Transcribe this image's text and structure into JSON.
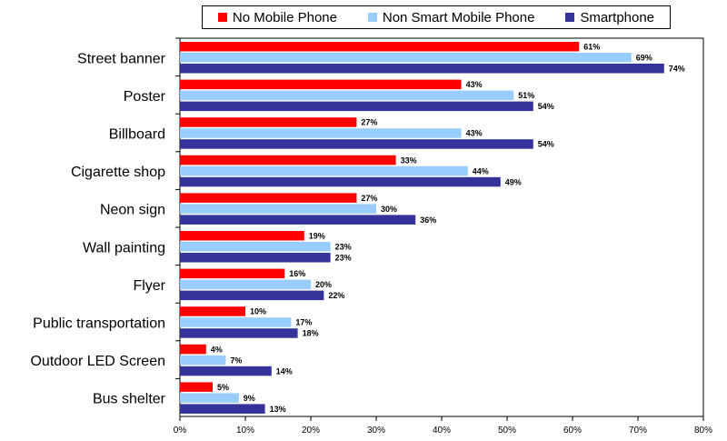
{
  "chart_data": {
    "type": "bar",
    "orientation": "horizontal",
    "categories": [
      "Street banner",
      "Poster",
      "Billboard",
      "Cigarette shop",
      "Neon sign",
      "Wall painting",
      "Flyer",
      "Public transportation",
      "Outdoor LED Screen",
      "Bus shelter"
    ],
    "series": [
      {
        "name": "No Mobile Phone",
        "color": "#ff0000",
        "values": [
          61,
          43,
          27,
          33,
          27,
          19,
          16,
          10,
          4,
          5
        ],
        "labels": [
          "61%",
          "43%",
          "27%",
          "33%",
          "27%",
          "19%",
          "16%",
          "10%",
          "4%",
          "5%"
        ]
      },
      {
        "name": "Non Smart Mobile Phone",
        "color": "#99ccff",
        "values": [
          69,
          51,
          43,
          44,
          30,
          23,
          20,
          17,
          7,
          9
        ],
        "labels": [
          "69%",
          "51%",
          "43%",
          "44%",
          "30%",
          "23%",
          "20%",
          "17%",
          "7%",
          "9%"
        ]
      },
      {
        "name": "Smartphone",
        "color": "#333399",
        "values": [
          74,
          54,
          54,
          49,
          36,
          23,
          22,
          18,
          14,
          13
        ],
        "labels": [
          "74%",
          "54%",
          "54%",
          "49%",
          "36%",
          "23%",
          "22%",
          "18%",
          "14%",
          "13%"
        ]
      }
    ],
    "xlim": [
      0,
      80
    ],
    "xticks": [
      0,
      10,
      20,
      30,
      40,
      50,
      60,
      70,
      80
    ],
    "xtick_labels": [
      "0%",
      "10%",
      "20%",
      "30%",
      "40%",
      "50%",
      "60%",
      "70%",
      "80%"
    ],
    "legend_position": "top",
    "grid": false
  }
}
